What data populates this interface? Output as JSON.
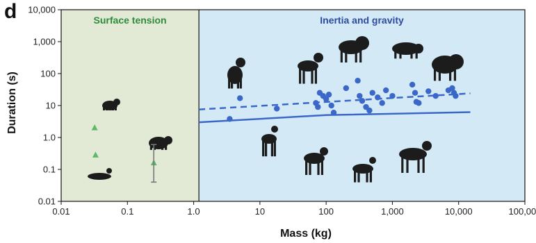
{
  "panel_label": "d",
  "chart_data": {
    "type": "scatter",
    "xlabel": "Mass (kg)",
    "ylabel": "Duration (s)",
    "x_scale": "log",
    "y_scale": "log",
    "xlim": [
      0.01,
      100000
    ],
    "ylim": [
      0.01,
      10000
    ],
    "x_ticks": [
      0.01,
      0.1,
      1,
      10,
      100,
      1000,
      10000,
      100000
    ],
    "x_tick_labels": [
      "0.01",
      "0.1",
      "1.0",
      "10",
      "100",
      "1,000",
      "10,000",
      "100,000"
    ],
    "y_ticks": [
      0.01,
      0.1,
      1,
      10,
      100,
      1000,
      10000
    ],
    "y_tick_labels": [
      "0.01",
      "0.1",
      "1.0",
      "10",
      "100",
      "1,000",
      "10,000"
    ],
    "grid": false,
    "regions": [
      {
        "label": "Surface tension",
        "x_range": [
          0.01,
          1.2
        ],
        "color": "#e2ead6",
        "label_color": "#2e8b3a"
      },
      {
        "label": "Inertia and gravity",
        "x_range": [
          1.2,
          100000
        ],
        "color": "#d3e9f6",
        "label_color": "#2d4aa0"
      }
    ],
    "series": [
      {
        "marker": "triangle",
        "color": "#5fb86a",
        "points": [
          [
            0.032,
            2.0
          ],
          [
            0.033,
            0.28
          ],
          [
            0.25,
            0.16
          ]
        ]
      },
      {
        "marker": "circle",
        "color": "#3a67c8",
        "points": [
          [
            3.5,
            3.8
          ],
          [
            5,
            17
          ],
          [
            18,
            8
          ],
          [
            70,
            12
          ],
          [
            75,
            9
          ],
          [
            80,
            25
          ],
          [
            90,
            20
          ],
          [
            100,
            16
          ],
          [
            110,
            22
          ],
          [
            120,
            10
          ],
          [
            130,
            6
          ],
          [
            200,
            35
          ],
          [
            300,
            60
          ],
          [
            320,
            20
          ],
          [
            350,
            14
          ],
          [
            400,
            9
          ],
          [
            450,
            7
          ],
          [
            500,
            25
          ],
          [
            600,
            18
          ],
          [
            700,
            12
          ],
          [
            800,
            30
          ],
          [
            1000,
            20
          ],
          [
            2000,
            45
          ],
          [
            2200,
            25
          ],
          [
            2300,
            13
          ],
          [
            2500,
            12
          ],
          [
            3500,
            28
          ],
          [
            4500,
            20
          ],
          [
            7000,
            30
          ],
          [
            8000,
            35
          ],
          [
            8500,
            25
          ],
          [
            9000,
            20
          ]
        ]
      },
      {
        "marker": "errorbar",
        "color": "#777777",
        "points": [
          [
            0.25,
            0.16
          ]
        ],
        "error_range": [
          [
            0.04,
            0.6
          ]
        ]
      }
    ],
    "fit_lines": [
      {
        "style": "dashed",
        "color": "#3a67c8",
        "points": [
          [
            1.2,
            7.5
          ],
          [
            15000,
            24
          ]
        ]
      },
      {
        "style": "solid",
        "color": "#3a67c8",
        "points": [
          [
            1.2,
            3.0
          ],
          [
            100,
            5.0
          ],
          [
            15000,
            6.2
          ]
        ]
      }
    ]
  }
}
